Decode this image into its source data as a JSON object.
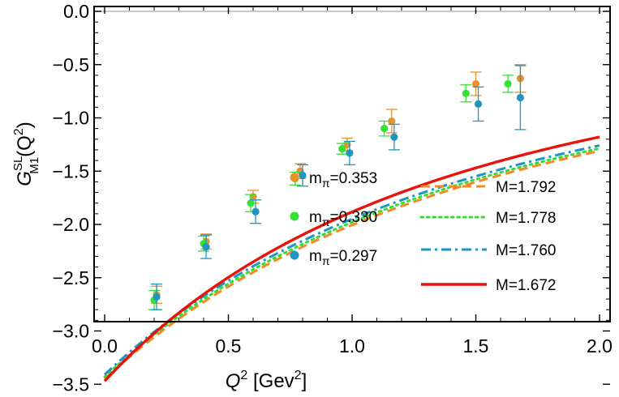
{
  "chart_data": {
    "type": "scatter",
    "title": "",
    "xlabel": {
      "base": "Q",
      "sup": "2",
      "unit_open": " [Gev",
      "unit_sup": "2",
      "unit_close": "]"
    },
    "ylabel": {
      "base": "G",
      "sup": "SL",
      "sub": "M1",
      "arg_open": "(Q",
      "arg_sup": "2",
      "arg_close": ")"
    },
    "xlim": [
      0,
      2.0
    ],
    "ylim": [
      -3.6,
      0.05
    ],
    "x_ticks": [
      0.0,
      0.5,
      1.0,
      1.5,
      2.0
    ],
    "x_tick_labels": [
      "0.0",
      "0.5",
      "1.0",
      "1.5",
      "2.0"
    ],
    "y_ticks": [
      0.0,
      -0.5,
      -1.0,
      -1.5,
      -2.0,
      -2.5,
      -3.0,
      -3.5
    ],
    "y_tick_labels": [
      "0.0",
      "−0.5",
      "−1.0",
      "−1.5",
      "−2.0",
      "−2.5",
      "−3.0",
      "−3.5"
    ],
    "grid": false,
    "zero_line": true,
    "points_series": [
      {
        "name_base": "m",
        "name_sub": "π",
        "name_value": "=0.353",
        "color": "#E8912D",
        "points": [
          {
            "x": 0.21,
            "y": -2.66,
            "err": 0.08
          },
          {
            "x": 0.41,
            "y": -2.16,
            "err": 0.07
          },
          {
            "x": 0.6,
            "y": -1.74,
            "err": 0.06
          },
          {
            "x": 0.79,
            "y": -1.5,
            "err": 0.07
          },
          {
            "x": 0.98,
            "y": -1.25,
            "err": 0.06
          },
          {
            "x": 1.16,
            "y": -1.03,
            "err": 0.11
          },
          {
            "x": 1.5,
            "y": -0.68,
            "err": 0.11
          },
          {
            "x": 1.68,
            "y": -0.63,
            "err": 0.13
          }
        ]
      },
      {
        "name_base": "m",
        "name_sub": "π",
        "name_value": "=0.330",
        "color": "#33E233",
        "points": [
          {
            "x": 0.2,
            "y": -2.71,
            "err": 0.09
          },
          {
            "x": 0.4,
            "y": -2.18,
            "err": 0.07
          },
          {
            "x": 0.59,
            "y": -1.8,
            "err": 0.08
          },
          {
            "x": 0.77,
            "y": -1.57,
            "err": 0.06
          },
          {
            "x": 0.96,
            "y": -1.29,
            "err": 0.05
          },
          {
            "x": 1.13,
            "y": -1.1,
            "err": 0.07
          },
          {
            "x": 1.46,
            "y": -0.77,
            "err": 0.08
          },
          {
            "x": 1.63,
            "y": -0.68,
            "err": 0.08
          }
        ]
      },
      {
        "name_base": "m",
        "name_sub": "π",
        "name_value": "=0.297",
        "color": "#1F95BF",
        "points": [
          {
            "x": 0.21,
            "y": -2.68,
            "err": 0.12
          },
          {
            "x": 0.41,
            "y": -2.21,
            "err": 0.11
          },
          {
            "x": 0.61,
            "y": -1.88,
            "err": 0.11
          },
          {
            "x": 0.8,
            "y": -1.54,
            "err": 0.1
          },
          {
            "x": 0.99,
            "y": -1.33,
            "err": 0.11
          },
          {
            "x": 1.17,
            "y": -1.18,
            "err": 0.12
          },
          {
            "x": 1.51,
            "y": -0.87,
            "err": 0.16
          },
          {
            "x": 1.68,
            "y": -0.81,
            "err": 0.3
          }
        ]
      }
    ],
    "line_series": [
      {
        "name": "M=1.792",
        "color": "#F58A25",
        "style": "dashed",
        "g0": -3.45,
        "M": 1.792
      },
      {
        "name": "M=1.778",
        "color": "#2EE02E",
        "style": "dotted",
        "g0": -3.43,
        "M": 1.778
      },
      {
        "name": "M=1.760",
        "color": "#1F95BF",
        "style": "dashdot",
        "g0": -3.41,
        "M": 1.76
      },
      {
        "name": "M=1.672",
        "color": "#E8140C",
        "style": "solid",
        "g0": -3.47,
        "M": 1.672
      }
    ],
    "legend_placement": "lower-right"
  }
}
